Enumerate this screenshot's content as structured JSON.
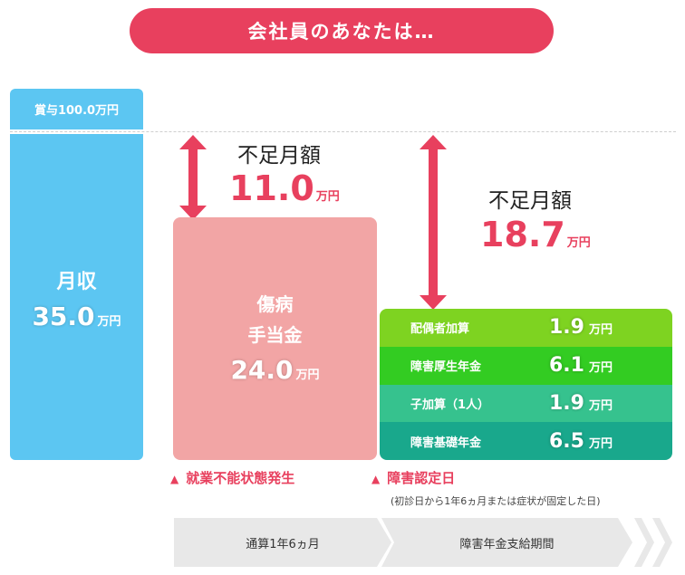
{
  "banner": "会社員のあなたは…",
  "bonus": "賞与100.0万円",
  "income": {
    "label": "月収",
    "value": "35.0",
    "unit": "万円"
  },
  "shobyo": {
    "line1": "傷病",
    "line2": "手当金",
    "value": "24.0",
    "unit": "万円"
  },
  "shortage1": {
    "label": "不足月額",
    "value": "11.0",
    "unit": "万円"
  },
  "shortage2": {
    "label": "不足月額",
    "value": "18.7",
    "unit": "万円"
  },
  "pension_rows": [
    {
      "name": "配偶者加算",
      "value": "1.9",
      "unit": "万円",
      "color": "#7ed321"
    },
    {
      "name": "障害厚生年金",
      "value": "6.1",
      "unit": "万円",
      "color": "#33cc22"
    },
    {
      "name": "子加算（1人）",
      "value": "1.9",
      "unit": "万円",
      "color": "#36c28e"
    },
    {
      "name": "障害基礎年金",
      "value": "6.5",
      "unit": "万円",
      "color": "#19a88c"
    }
  ],
  "events": {
    "incapacity": "就業不能状態発生",
    "certification": "障害認定日",
    "certification_note": "(初診日から1年6ヵ月または症状が固定した日)"
  },
  "timeline": {
    "phase1": "通算1年6ヵ月",
    "phase2": "障害年金支給期間"
  },
  "colors": {
    "accent": "#e8405e",
    "income": "#5cc6f2",
    "shobyo": "#f2a5a5",
    "timeline": "#e8e8e8"
  },
  "icons": [
    "double-arrow-icon",
    "triangle-up-icon",
    "chevron-right-icon"
  ]
}
